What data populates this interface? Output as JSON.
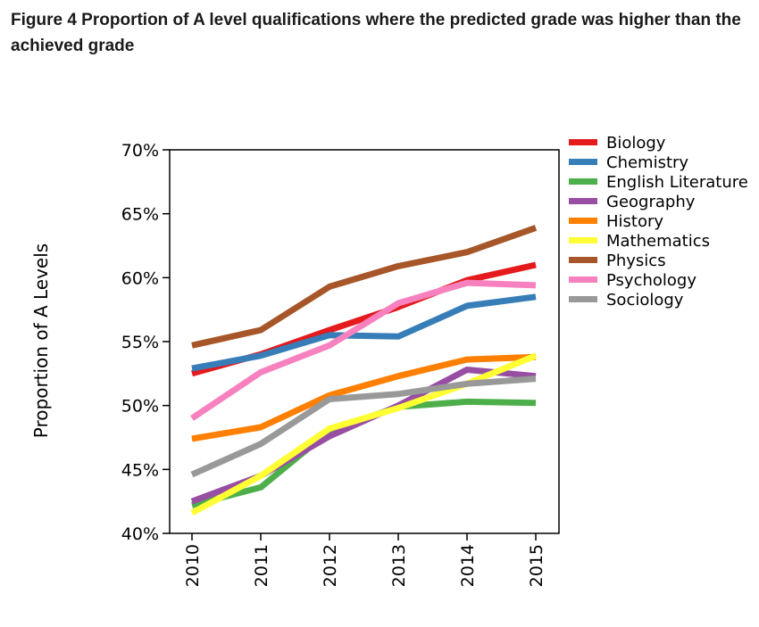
{
  "figure": {
    "title": "Figure 4 Proportion of A level qualifications where the predicted grade was higher than the achieved grade"
  },
  "chart_data": {
    "type": "line",
    "title": "Figure 4 Proportion of A level qualifications where the predicted grade was higher than the achieved grade",
    "xlabel": "",
    "ylabel": "Proportion of A Levels",
    "x": [
      "2010",
      "2011",
      "2012",
      "2013",
      "2014",
      "2015"
    ],
    "ylim": [
      40,
      70
    ],
    "yticks": [
      40,
      45,
      50,
      55,
      60,
      65,
      70
    ],
    "ytick_labels": [
      "40%",
      "45%",
      "50%",
      "55%",
      "60%",
      "65%",
      "70%"
    ],
    "grid": false,
    "legend_position": "right",
    "series": [
      {
        "name": "Biology",
        "color": "#e41a1c",
        "values": [
          52.5,
          54.0,
          55.9,
          57.7,
          59.8,
          61.0
        ]
      },
      {
        "name": "Chemistry",
        "color": "#377eb8",
        "values": [
          52.9,
          53.9,
          55.5,
          55.4,
          57.8,
          58.5
        ]
      },
      {
        "name": "English Literature",
        "color": "#4daf4a",
        "values": [
          42.2,
          43.6,
          48.0,
          49.9,
          50.3,
          50.2
        ]
      },
      {
        "name": "Geography",
        "color": "#984ea3",
        "values": [
          42.5,
          44.5,
          47.6,
          50.0,
          52.8,
          52.3
        ]
      },
      {
        "name": "History",
        "color": "#ff7f00",
        "values": [
          47.4,
          48.3,
          50.8,
          52.3,
          53.6,
          53.8
        ]
      },
      {
        "name": "Mathematics",
        "color": "#ffff33",
        "values": [
          41.6,
          44.5,
          48.2,
          49.8,
          51.7,
          53.9
        ]
      },
      {
        "name": "Physics",
        "color": "#a65628",
        "values": [
          54.7,
          55.9,
          59.3,
          60.9,
          62.0,
          63.9
        ]
      },
      {
        "name": "Psychology",
        "color": "#f781bf",
        "values": [
          49.0,
          52.6,
          54.7,
          58.0,
          59.6,
          59.4
        ]
      },
      {
        "name": "Sociology",
        "color": "#999999",
        "values": [
          44.6,
          47.0,
          50.5,
          50.9,
          51.7,
          52.1
        ]
      }
    ]
  }
}
